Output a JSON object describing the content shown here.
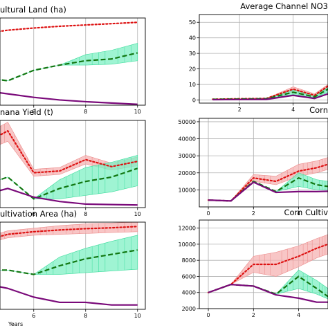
{
  "chart_data": [
    {
      "type": "line",
      "title": "ultural Land (ha)",
      "xlabel": "",
      "xlim": [
        4.7,
        10.3
      ],
      "ylim": [
        0,
        100
      ],
      "xticks": [
        6,
        8,
        10
      ],
      "xtick_labels": [
        "6",
        "8",
        "10"
      ],
      "yticks": [],
      "ytick_labels": [],
      "series": [
        {
          "x": [
            4.5,
            5,
            6,
            7,
            8,
            9,
            10
          ],
          "y": [
            84,
            86,
            88.5,
            90.5,
            92,
            93.5,
            95
          ],
          "color": "#dd1111",
          "style": "dotted"
        },
        {
          "x": [
            4.5,
            5,
            6,
            7,
            8,
            9,
            10
          ],
          "y": [
            30,
            28,
            40,
            46,
            51,
            53,
            60
          ],
          "color": "#117711",
          "style": "dashed",
          "band_low": [
            30,
            28,
            40,
            46,
            46,
            47,
            51
          ],
          "band_high": [
            30,
            28,
            40,
            46,
            58,
            63,
            71
          ]
        },
        {
          "x": [
            4.5,
            5,
            6,
            7,
            8,
            9,
            10
          ],
          "y": [
            15,
            13,
            9,
            6,
            4,
            2.5,
            1
          ],
          "color": "#7a0a7a",
          "style": "solid"
        }
      ]
    },
    {
      "type": "line",
      "title": "Average Channel NO3",
      "xlabel": "",
      "xlim": [
        0.5,
        5.3
      ],
      "ylim": [
        -2,
        55
      ],
      "xticks": [
        2,
        4
      ],
      "xtick_labels": [
        "2",
        "4"
      ],
      "yticks": [
        0,
        10,
        20,
        30,
        40,
        50
      ],
      "ytick_labels": [
        "0",
        "10",
        "20",
        "30",
        "40",
        "50"
      ],
      "series": [
        {
          "x": [
            1,
            2,
            3,
            4,
            4.8,
            5.3
          ],
          "y": [
            0.5,
            0.8,
            1,
            7,
            3,
            9
          ],
          "color": "#dd1111",
          "style": "dotted",
          "band_low": [
            0.5,
            0.8,
            1,
            5,
            2,
            7
          ],
          "band_high": [
            0.5,
            0.8,
            1,
            8.5,
            4,
            10
          ]
        },
        {
          "x": [
            1,
            2,
            3,
            4,
            4.8,
            5.3
          ],
          "y": [
            0.4,
            0.6,
            0.8,
            5,
            2,
            7
          ],
          "color": "#117711",
          "style": "dashed",
          "band_low": [
            0.4,
            0.6,
            0.8,
            3.5,
            1.5,
            5
          ],
          "band_high": [
            0.4,
            0.6,
            0.8,
            6.5,
            3,
            8
          ]
        },
        {
          "x": [
            1,
            2,
            3,
            4,
            4.8,
            5.3
          ],
          "y": [
            0.2,
            0.3,
            0.4,
            3,
            1,
            4
          ],
          "color": "#7a0a7a",
          "style": "solid"
        }
      ]
    },
    {
      "type": "line",
      "title": "nana Yield (t)",
      "xlabel": "",
      "xlim": [
        4.7,
        10.3
      ],
      "ylim": [
        0,
        100
      ],
      "xticks": [
        6,
        8,
        10
      ],
      "xtick_labels": [
        "6",
        "8",
        "10"
      ],
      "yticks": [],
      "ytick_labels": [],
      "series": [
        {
          "x": [
            4.5,
            5,
            6,
            7,
            8,
            9,
            10
          ],
          "y": [
            80,
            88,
            40,
            42,
            55,
            47,
            53
          ],
          "color": "#dd1111",
          "style": "dotted",
          "band_low": [
            70,
            76,
            36,
            38,
            50,
            43,
            48
          ],
          "band_high": [
            90,
            98,
            44,
            46,
            60,
            51,
            58
          ]
        },
        {
          "x": [
            4.5,
            5,
            6,
            7,
            8,
            9,
            10
          ],
          "y": [
            30,
            35,
            10,
            22,
            30,
            35,
            45
          ],
          "color": "#117711",
          "style": "dashed",
          "band_low": [
            30,
            35,
            10,
            10,
            14,
            18,
            25
          ],
          "band_high": [
            30,
            35,
            10,
            32,
            46,
            52,
            60
          ]
        },
        {
          "x": [
            4.5,
            5,
            6,
            7,
            8,
            9,
            10
          ],
          "y": [
            18,
            22,
            12,
            7,
            4,
            3.5,
            3
          ],
          "color": "#7a0a7a",
          "style": "solid"
        }
      ]
    },
    {
      "type": "line",
      "title": "Corn",
      "xlabel": "",
      "xlim": [
        -0.4,
        5.3
      ],
      "ylim": [
        0,
        52000
      ],
      "xticks": [
        0,
        2,
        4
      ],
      "xtick_labels": [
        "0",
        "2",
        "4"
      ],
      "yticks": [
        10000,
        20000,
        30000,
        40000,
        50000
      ],
      "ytick_labels": [
        "10000",
        "20000",
        "30000",
        "40000",
        "50000"
      ],
      "series": [
        {
          "x": [
            0,
            1,
            2,
            3,
            4,
            4.8,
            5.3
          ],
          "y": [
            4000,
            3500,
            17000,
            15000,
            21000,
            23000,
            25000
          ],
          "color": "#dd1111",
          "style": "dotted",
          "band_low": [
            4000,
            3500,
            15000,
            13000,
            18000,
            20000,
            22000
          ],
          "band_high": [
            4000,
            3500,
            19000,
            18000,
            25000,
            27000,
            29000
          ]
        },
        {
          "x": [
            0,
            1,
            2,
            3,
            4,
            4.8,
            5.3
          ],
          "y": [
            4000,
            3500,
            15000,
            9000,
            17000,
            13000,
            12000
          ],
          "color": "#117711",
          "style": "dashed",
          "band_low": [
            4000,
            3500,
            15000,
            9000,
            12000,
            10000,
            10000
          ],
          "band_high": [
            4000,
            3500,
            15000,
            9000,
            20000,
            16000,
            15000
          ]
        },
        {
          "x": [
            0,
            1,
            2,
            3,
            4,
            4.8,
            5.3
          ],
          "y": [
            4000,
            3500,
            14500,
            8500,
            9000,
            9000,
            9200
          ],
          "color": "#7a0a7a",
          "style": "solid"
        }
      ]
    },
    {
      "type": "line",
      "title": "ultivation Area (ha)",
      "xlabel": "Years",
      "xlim": [
        4.7,
        10.3
      ],
      "ylim": [
        0,
        100
      ],
      "xticks": [
        6,
        8,
        10
      ],
      "xtick_labels": [
        "6",
        "8",
        "10"
      ],
      "yticks": [],
      "ytick_labels": [],
      "series": [
        {
          "x": [
            4.5,
            5,
            6,
            7,
            8,
            9,
            10
          ],
          "y": [
            82,
            86,
            89,
            91,
            92.5,
            93.5,
            95
          ],
          "color": "#dd1111",
          "style": "dotted",
          "band_low": [
            78,
            82,
            85,
            86,
            87,
            88,
            89
          ],
          "band_high": [
            86,
            90,
            93,
            96,
            98,
            99,
            100
          ]
        },
        {
          "x": [
            4.5,
            5,
            6,
            7,
            8,
            9,
            10
          ],
          "y": [
            45,
            45,
            40,
            50,
            58,
            63,
            68
          ],
          "color": "#117711",
          "style": "dashed",
          "band_low": [
            45,
            45,
            40,
            40,
            42,
            44,
            46
          ],
          "band_high": [
            45,
            45,
            40,
            60,
            70,
            78,
            85
          ]
        },
        {
          "x": [
            4.5,
            5,
            6,
            7,
            8,
            9,
            10
          ],
          "y": [
            27,
            24,
            14,
            8,
            8,
            5,
            5
          ],
          "color": "#7a0a7a",
          "style": "solid"
        }
      ]
    },
    {
      "type": "line",
      "title": "Corn Cultiv",
      "xlabel": "",
      "xlim": [
        -0.4,
        5.3
      ],
      "ylim": [
        2000,
        13000
      ],
      "xticks": [
        0,
        2,
        4
      ],
      "xtick_labels": [
        "0",
        "2",
        "4"
      ],
      "yticks": [
        2000,
        4000,
        6000,
        8000,
        10000,
        12000
      ],
      "ytick_labels": [
        "2000",
        "4000",
        "6000",
        "8000",
        "10000",
        "12000"
      ],
      "series": [
        {
          "x": [
            0,
            1,
            2,
            3,
            4,
            4.8,
            5.3
          ],
          "y": [
            4000,
            5000,
            7500,
            7500,
            8500,
            9500,
            10000
          ],
          "color": "#dd1111",
          "style": "dotted",
          "band_low": [
            4000,
            5000,
            6500,
            6000,
            7200,
            8300,
            8800
          ],
          "band_high": [
            4000,
            5000,
            8500,
            9000,
            9800,
            10700,
            11200
          ]
        },
        {
          "x": [
            0,
            1,
            2,
            3,
            4,
            4.8,
            5.3
          ],
          "y": [
            4000,
            5000,
            4800,
            3800,
            6000,
            4500,
            3500
          ],
          "color": "#117711",
          "style": "dashed",
          "band_low": [
            4000,
            5000,
            4800,
            3800,
            4500,
            3800,
            3200
          ],
          "band_high": [
            4000,
            5000,
            4800,
            3800,
            6800,
            5500,
            4500
          ]
        },
        {
          "x": [
            0,
            1,
            2,
            3,
            4,
            4.8,
            5.3
          ],
          "y": [
            4000,
            5000,
            4800,
            3700,
            3300,
            2800,
            2800
          ],
          "color": "#7a0a7a",
          "style": "solid"
        }
      ]
    }
  ]
}
